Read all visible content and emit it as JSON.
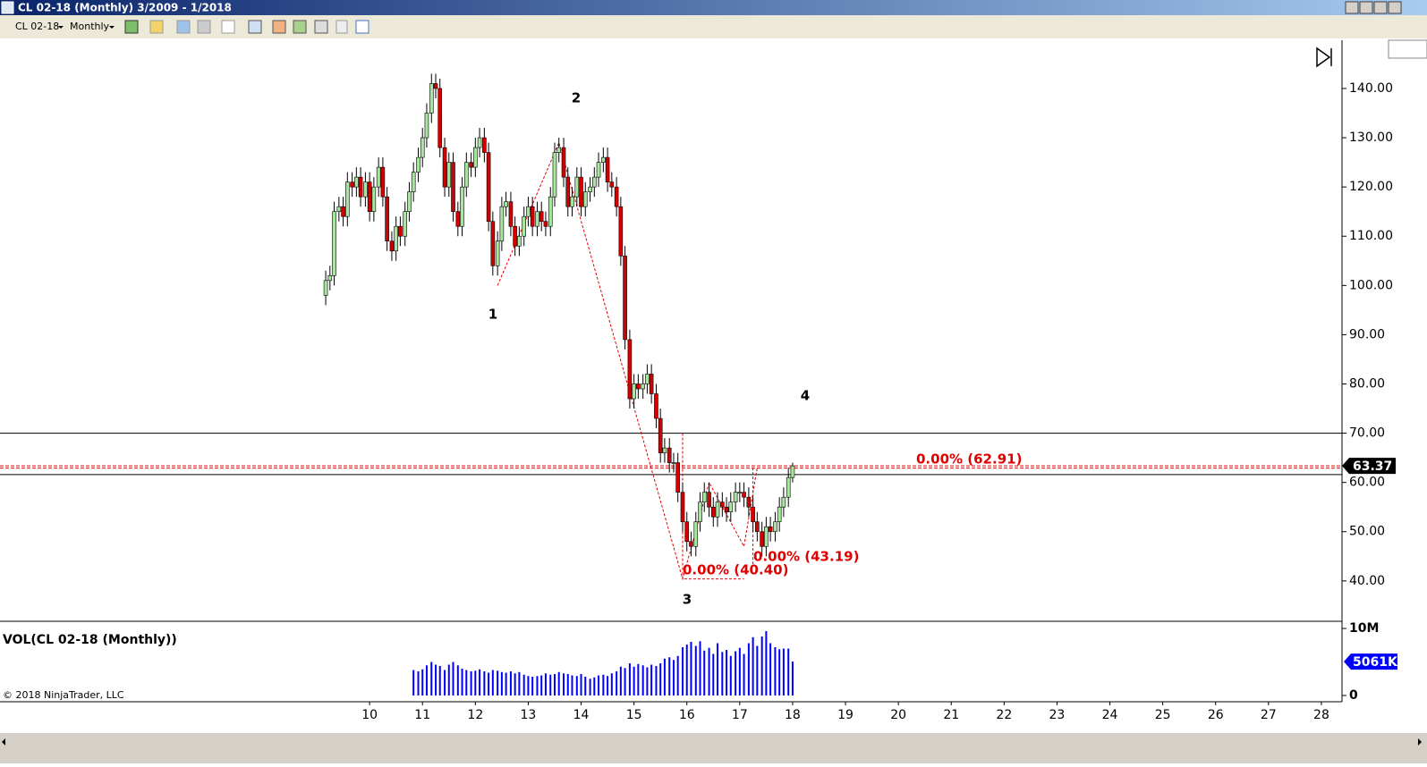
{
  "chart_data": {
    "type": "candlestick",
    "title": "CL 02-18 (Monthly)  3/2009 - 1/2018",
    "instrument": "CL 02-18",
    "period": "Monthly",
    "x": [
      9.17,
      9.25,
      9.33,
      9.42,
      9.5,
      9.58,
      9.67,
      9.75,
      9.83,
      9.92,
      10,
      10.08,
      10.17,
      10.25,
      10.33,
      10.42,
      10.5,
      10.58,
      10.67,
      10.75,
      10.83,
      10.92,
      11,
      11.08,
      11.17,
      11.25,
      11.33,
      11.42,
      11.5,
      11.58,
      11.67,
      11.75,
      11.83,
      11.92,
      12,
      12.08,
      12.17,
      12.25,
      12.33,
      12.42,
      12.5,
      12.58,
      12.67,
      12.75,
      12.83,
      12.92,
      13,
      13.08,
      13.17,
      13.25,
      13.33,
      13.42,
      13.5,
      13.58,
      13.67,
      13.75,
      13.83,
      13.92,
      14,
      14.08,
      14.17,
      14.25,
      14.33,
      14.42,
      14.5,
      14.58,
      14.67,
      14.75,
      14.83,
      14.92,
      15,
      15.08,
      15.17,
      15.25,
      15.33,
      15.42,
      15.5,
      15.58,
      15.67,
      15.75,
      15.83,
      15.92,
      16,
      16.08,
      16.17,
      16.25,
      16.33,
      16.42,
      16.5,
      16.58,
      16.67,
      16.75,
      16.83,
      16.92,
      17,
      17.08,
      17.17,
      17.25,
      17.33,
      17.42,
      17.5,
      17.58,
      17.67,
      17.75,
      17.83,
      17.92,
      18
    ],
    "open": [
      98,
      101,
      102,
      115,
      116,
      114,
      121,
      120,
      122,
      118,
      121,
      115,
      120,
      124,
      118,
      109,
      107,
      112,
      110,
      115,
      119,
      123,
      126,
      130,
      135,
      141,
      140,
      128,
      120,
      125,
      115,
      112,
      120,
      125,
      124,
      128,
      130,
      127,
      113,
      104,
      109,
      116,
      117,
      112,
      108,
      110,
      114,
      116,
      112,
      115,
      113,
      112,
      118,
      127,
      128,
      122,
      116,
      118,
      122,
      116,
      119,
      120,
      122,
      125,
      126,
      121,
      120,
      116,
      106,
      89,
      77,
      80,
      79,
      80,
      82,
      78,
      73,
      66,
      67,
      64,
      64,
      58,
      52,
      48,
      47,
      52,
      56,
      58,
      55,
      53,
      56,
      55,
      54,
      56,
      58,
      58,
      57,
      55,
      52,
      50,
      47,
      51,
      50,
      52,
      55,
      57,
      61
    ],
    "high": [
      103,
      104,
      117,
      118,
      118,
      123,
      123,
      124,
      124,
      123,
      123,
      122,
      126,
      126,
      120,
      111,
      114,
      114,
      117,
      121,
      125,
      128,
      132,
      137,
      143,
      143,
      142,
      130,
      127,
      127,
      117,
      122,
      127,
      127,
      130,
      132,
      132,
      129,
      115,
      111,
      118,
      119,
      119,
      114,
      112,
      116,
      118,
      118,
      117,
      117,
      115,
      120,
      129,
      130,
      130,
      124,
      120,
      124,
      124,
      121,
      122,
      124,
      127,
      128,
      128,
      123,
      122,
      118,
      108,
      91,
      82,
      82,
      82,
      84,
      84,
      80,
      75,
      69,
      69,
      66,
      66,
      60,
      54,
      50,
      54,
      58,
      60,
      60,
      57,
      58,
      58,
      57,
      58,
      60,
      60,
      60,
      59,
      57,
      54,
      52,
      53,
      53,
      54,
      57,
      59,
      63,
      64
    ],
    "low": [
      96,
      99,
      100,
      113,
      112,
      112,
      118,
      118,
      116,
      116,
      113,
      113,
      118,
      116,
      107,
      105,
      105,
      108,
      108,
      113,
      117,
      121,
      124,
      128,
      133,
      138,
      126,
      118,
      118,
      113,
      110,
      110,
      118,
      122,
      122,
      126,
      125,
      111,
      102,
      102,
      107,
      114,
      110,
      106,
      106,
      108,
      112,
      110,
      110,
      111,
      110,
      110,
      116,
      125,
      120,
      114,
      114,
      116,
      114,
      114,
      117,
      118,
      120,
      123,
      119,
      118,
      114,
      104,
      87,
      75,
      75,
      77,
      77,
      78,
      76,
      71,
      64,
      64,
      62,
      62,
      56,
      50,
      46,
      45,
      45,
      50,
      54,
      53,
      51,
      51,
      53,
      52,
      52,
      54,
      56,
      55,
      53,
      50,
      48,
      45,
      45,
      48,
      48,
      50,
      53,
      55,
      60
    ],
    "close": [
      101,
      102,
      115,
      116,
      114,
      121,
      120,
      122,
      118,
      121,
      115,
      120,
      124,
      118,
      109,
      107,
      112,
      110,
      115,
      119,
      123,
      126,
      130,
      135,
      141,
      140,
      128,
      120,
      125,
      115,
      112,
      120,
      125,
      124,
      128,
      130,
      127,
      113,
      104,
      109,
      116,
      117,
      112,
      108,
      110,
      114,
      116,
      112,
      115,
      113,
      112,
      118,
      127,
      128,
      122,
      116,
      118,
      122,
      116,
      119,
      120,
      122,
      125,
      126,
      121,
      120,
      116,
      106,
      89,
      77,
      80,
      79,
      80,
      82,
      78,
      73,
      66,
      67,
      64,
      64,
      58,
      52,
      48,
      47,
      52,
      56,
      58,
      55,
      53,
      56,
      55,
      54,
      56,
      58,
      58,
      57,
      55,
      52,
      50,
      47,
      51,
      50,
      52,
      55,
      57,
      61,
      63.37
    ],
    "up_color": "#a8e6a0",
    "down_color": "#d40000",
    "xlim": [
      3.01,
      28.39
    ],
    "xticks": [
      10,
      11,
      12,
      13,
      14,
      15,
      16,
      17,
      18,
      19,
      20,
      21,
      22,
      23,
      24,
      25,
      26,
      27,
      28
    ],
    "ylim": [
      31.8,
      149.8
    ],
    "yticks": [
      {
        "value": 40,
        "label": "40.00"
      },
      {
        "value": 50,
        "label": "50.00"
      },
      {
        "value": 60,
        "label": "60.00"
      },
      {
        "value": 70,
        "label": "70.00"
      },
      {
        "value": 80,
        "label": "80.00"
      },
      {
        "value": 90,
        "label": "90.00"
      },
      {
        "value": 100,
        "label": "100.00"
      },
      {
        "value": 110,
        "label": "110.00"
      },
      {
        "value": 120,
        "label": "120.00"
      },
      {
        "value": 130,
        "label": "130.00"
      },
      {
        "value": 140,
        "label": "140.00"
      }
    ],
    "horizontal_lines": [
      {
        "value": 70,
        "color": "#000000",
        "dash": false
      },
      {
        "value": 61.6,
        "color": "#000000",
        "dash": false
      },
      {
        "value": 62.91,
        "color": "#e00000",
        "dash": true
      },
      {
        "value": 63.37,
        "color": "#e00000",
        "dash": true
      }
    ],
    "zigzag": {
      "color": "#e00000",
      "x": [
        12.42,
        13.58,
        15.92,
        16.42,
        17.08,
        17.33,
        null,
        15.92,
        15.92,
        17.08,
        null,
        17.25,
        17.25
      ],
      "y": [
        100,
        129,
        40.4,
        60,
        47,
        63,
        null,
        70,
        40.4,
        40.4,
        null,
        63,
        43.19
      ]
    },
    "annotations": [
      "0.00% (62.91)",
      "0.00% (40.40)",
      "0.00% (43.19)"
    ],
    "wave_labels": [
      "1",
      "2",
      "3",
      "4"
    ],
    "volume": {
      "title": "VOL(CL 02-18 (Monthly))",
      "color": "#0000ff",
      "ylim": [
        -0.93,
        11.07
      ],
      "yticks": [
        {
          "value": 10,
          "label": "10M"
        },
        0
      ],
      "last_label": "5061K",
      "values": [
        null,
        null,
        null,
        null,
        null,
        null,
        null,
        null,
        null,
        null,
        null,
        null,
        null,
        null,
        null,
        null,
        null,
        null,
        null,
        null,
        3.8,
        3.6,
        3.9,
        4.5,
        5,
        4.6,
        4.4,
        3.8,
        4.6,
        5,
        4.5,
        4,
        3.8,
        3.6,
        3.7,
        3.9,
        3.6,
        3.4,
        3.8,
        3.7,
        3.5,
        3.4,
        3.6,
        3.3,
        3.5,
        3.1,
        2.9,
        2.8,
        2.9,
        3,
        3.3,
        3.1,
        3.2,
        3.5,
        3.3,
        3.2,
        3,
        2.9,
        3.2,
        2.8,
        2.5,
        2.7,
        3,
        3.1,
        2.9,
        3.3,
        3.6,
        4.3,
        4.1,
        4.8,
        4.3,
        4.7,
        4.5,
        4.2,
        4.6,
        4.4,
        4.8,
        5.5,
        5.7,
        5.3,
        5.9,
        7.2,
        7.6,
        8,
        7.4,
        8.1,
        6.7,
        7.1,
        6.2,
        7.8,
        6.5,
        6.8,
        5.9,
        6.6,
        7.1,
        6.2,
        7.8,
        8.7,
        7.4,
        8.8,
        9.6,
        7.8,
        7.2,
        6.9,
        7,
        7,
        5.061
      ]
    },
    "copyright": "© 2018 NinjaTrader, LLC"
  }
}
